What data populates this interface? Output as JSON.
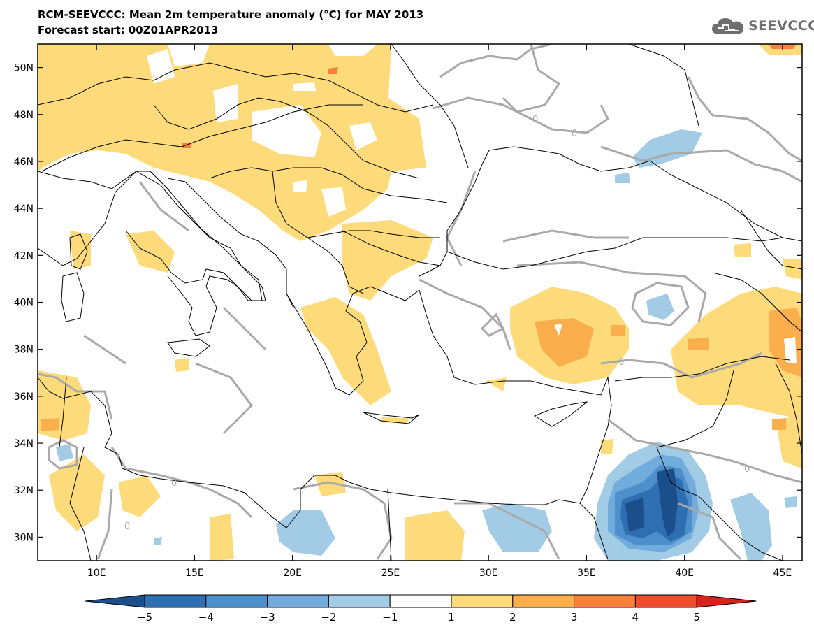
{
  "header": {
    "title": "RCM-SEEVCCC: Mean 2m temperature anomaly (°C) for MAY 2013",
    "subtitle": "Forecast start: 00Z01APR2013"
  },
  "logo": {
    "text": "SEEVCCC",
    "icon": "cloud-icon",
    "color": "#6e6e6e"
  },
  "map": {
    "lon_range": [
      7,
      46
    ],
    "lat_range": [
      29,
      51
    ],
    "x_ticks": [
      {
        "value": 10,
        "label": "10E"
      },
      {
        "value": 15,
        "label": "15E"
      },
      {
        "value": 20,
        "label": "20E"
      },
      {
        "value": 25,
        "label": "25E"
      },
      {
        "value": 30,
        "label": "30E"
      },
      {
        "value": 35,
        "label": "35E"
      },
      {
        "value": 40,
        "label": "40E"
      },
      {
        "value": 45,
        "label": "45E"
      }
    ],
    "y_ticks": [
      {
        "value": 30,
        "label": "30N"
      },
      {
        "value": 32,
        "label": "32N"
      },
      {
        "value": 34,
        "label": "34N"
      },
      {
        "value": 36,
        "label": "36N"
      },
      {
        "value": 38,
        "label": "38N"
      },
      {
        "value": 40,
        "label": "40N"
      },
      {
        "value": 42,
        "label": "42N"
      },
      {
        "value": 44,
        "label": "44N"
      },
      {
        "value": 46,
        "label": "46N"
      },
      {
        "value": 48,
        "label": "48N"
      },
      {
        "value": 50,
        "label": "50N"
      }
    ],
    "contour_label": "0"
  },
  "colorbar": {
    "labels": [
      "−5",
      "−4",
      "−3",
      "−2",
      "−1",
      "1",
      "2",
      "3",
      "4",
      "5"
    ],
    "colors": [
      "#1a4f8c",
      "#2d6fb0",
      "#4d8fcb",
      "#72acdc",
      "#a2cce6",
      "#ffffff",
      "#fddb7a",
      "#fbae4c",
      "#f8813b",
      "#ee4c2b",
      "#d8221e"
    ]
  },
  "anomaly_colors": {
    "plus_1_2": "#fddb7a",
    "plus_2_3": "#fbae4c",
    "minus_1_2": "#a2cce6",
    "minus_2_3": "#72acdc",
    "minus_3_4": "#4d8fcb",
    "minus_4_5": "#2d6fb0",
    "minus_5": "#1a4f8c"
  }
}
